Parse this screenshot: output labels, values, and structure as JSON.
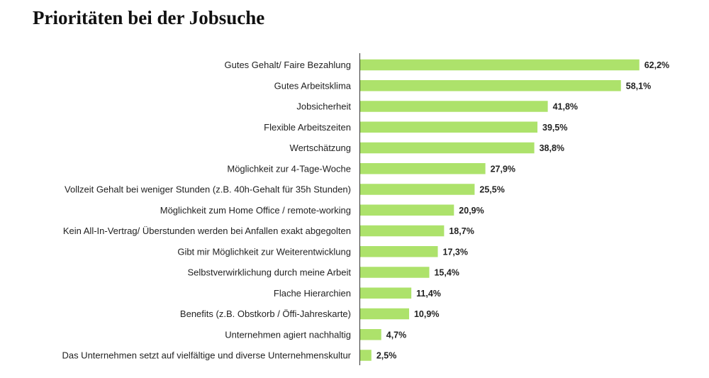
{
  "chart_data": {
    "type": "bar",
    "orientation": "horizontal",
    "title": "Prioritäten bei der Jobsuche",
    "xlabel": "",
    "ylabel": "",
    "grid": false,
    "bar_color": "#ade26b",
    "categories": [
      "Gutes Gehalt/ Faire Bezahlung",
      "Gutes Arbeitsklima",
      "Jobsicherheit",
      "Flexible Arbeitszeiten",
      "Wertschätzung",
      "Möglichkeit zur 4-Tage-Woche",
      "Vollzeit Gehalt bei weniger Stunden (z.B. 40h-Gehalt für 35h Stunden)",
      "Möglichkeit zum Home Office / remote-working",
      "Kein All-In-Vertrag/ Überstunden werden bei Anfallen exakt abgegolten",
      "Gibt mir Möglichkeit zur Weiterentwicklung",
      "Selbstverwirklichung durch meine Arbeit",
      "Flache Hierarchien",
      "Benefits (z.B. Obstkorb / Öffi-Jahreskarte)",
      "Unternehmen agiert nachhaltig",
      "Das Unternehmen setzt auf vielfältige und diverse Unternehmenskultur"
    ],
    "values": [
      62.2,
      58.1,
      41.8,
      39.5,
      38.8,
      27.9,
      25.5,
      20.9,
      18.7,
      17.3,
      15.4,
      11.4,
      10.9,
      4.7,
      2.5
    ],
    "value_labels": [
      "62,2%",
      "58,1%",
      "41,8%",
      "39,5%",
      "38,8%",
      "27,9%",
      "25,5%",
      "20,9%",
      "18,7%",
      "17,3%",
      "15,4%",
      "11,4%",
      "10,9%",
      "4,7%",
      "2,5%"
    ]
  }
}
